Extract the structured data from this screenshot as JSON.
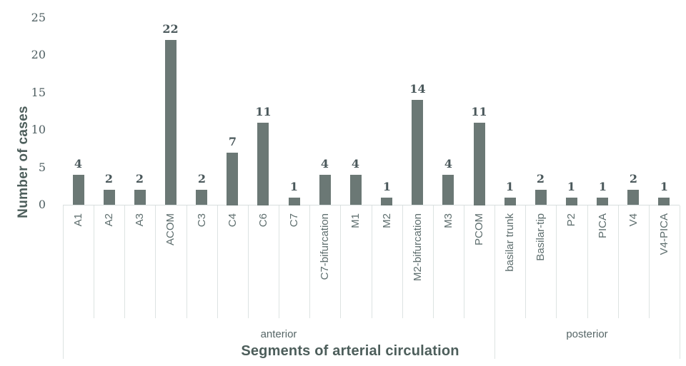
{
  "chart_data": {
    "type": "bar",
    "title": "",
    "xlabel": "Segments of arterial circulation",
    "ylabel": "Number of cases",
    "categories": [
      "A1",
      "A2",
      "A3",
      "ACOM",
      "C3",
      "C4",
      "C6",
      "C7",
      "C7-bifurcation",
      "M1",
      "M2",
      "M2-bifurcation",
      "M3",
      "PCOM",
      "basilar trunk",
      "Basilar-tip",
      "P2",
      "PICA",
      "V4",
      "V4-PICA"
    ],
    "values": [
      4,
      2,
      2,
      22,
      2,
      7,
      11,
      1,
      4,
      4,
      1,
      14,
      4,
      11,
      1,
      2,
      1,
      1,
      2,
      1
    ],
    "groups": [
      {
        "label": "anterior",
        "span": 14
      },
      {
        "label": "posterior",
        "span": 6
      }
    ],
    "y_ticks": [
      0,
      5,
      10,
      15,
      20,
      25
    ],
    "ylim": [
      0,
      25
    ],
    "grid": false,
    "legend_position": "none",
    "data_labels": true,
    "colors": {
      "bar": "#6b7875",
      "value_label": "#4a585b",
      "tick_label": "#4f5f62",
      "category_label": "#5e6e6e",
      "group_label": "#566667",
      "axis_title": "#4d5e5b",
      "separator_line": "#dde3e2",
      "baseline": "#d8dede"
    }
  }
}
